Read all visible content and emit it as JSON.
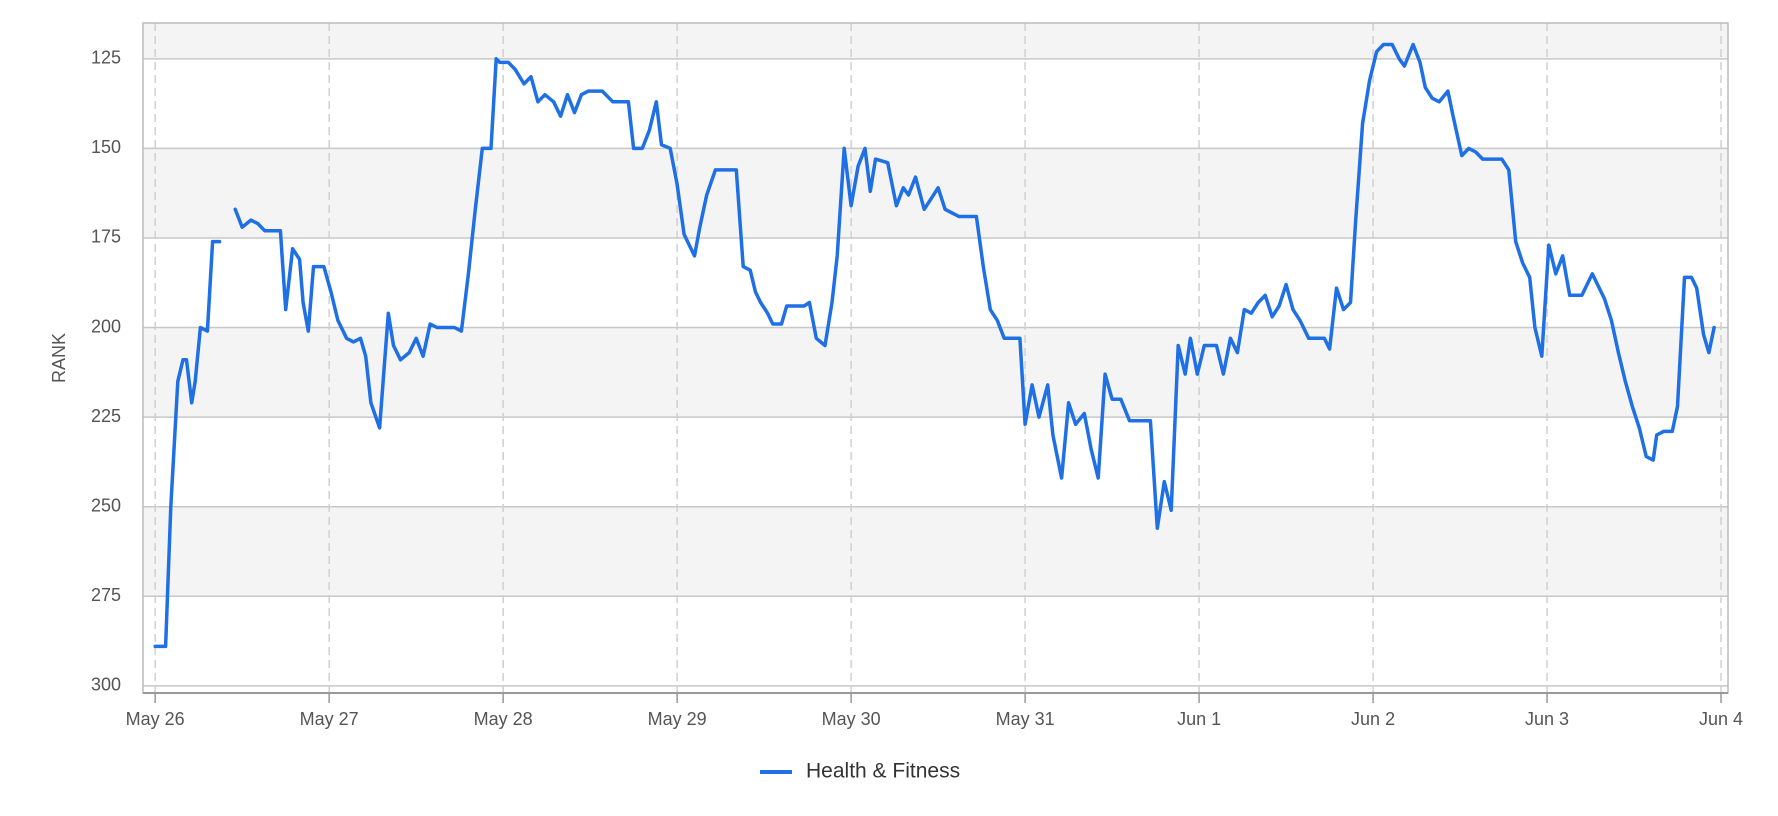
{
  "chart_data": {
    "type": "line",
    "y_label": "RANK",
    "y_reversed": true,
    "grid": true,
    "ylim": [
      115,
      302
    ],
    "yticks": [
      125,
      150,
      175,
      200,
      225,
      250,
      275,
      300
    ],
    "xlim": [
      -0.07,
      9.04
    ],
    "xticks": [
      {
        "value": 0,
        "label": "May 26"
      },
      {
        "value": 1,
        "label": "May 27"
      },
      {
        "value": 2,
        "label": "May 28"
      },
      {
        "value": 3,
        "label": "May 29"
      },
      {
        "value": 4,
        "label": "May 30"
      },
      {
        "value": 5,
        "label": "May 31"
      },
      {
        "value": 6,
        "label": "Jun 1"
      },
      {
        "value": 7,
        "label": "Jun 2"
      },
      {
        "value": 8,
        "label": "Jun 3"
      },
      {
        "value": 9,
        "label": "Jun 4"
      }
    ],
    "x": [
      0,
      0.06,
      0.09,
      0.13,
      0.16,
      0.18,
      0.21,
      0.23,
      0.26,
      0.3,
      0.33,
      0.37,
      0.41,
      0.46,
      0.5,
      0.55,
      0.59,
      0.63,
      0.72,
      0.75,
      0.79,
      0.83,
      0.85,
      0.88,
      0.91,
      0.97,
      1.01,
      1.05,
      1.1,
      1.14,
      1.18,
      1.21,
      1.24,
      1.29,
      1.34,
      1.37,
      1.41,
      1.46,
      1.5,
      1.54,
      1.58,
      1.62,
      1.72,
      1.76,
      1.8,
      1.84,
      1.88,
      1.93,
      1.96,
      1.98,
      2.03,
      2.07,
      2.12,
      2.16,
      2.2,
      2.24,
      2.29,
      2.33,
      2.37,
      2.41,
      2.45,
      2.49,
      2.57,
      2.63,
      2.72,
      2.75,
      2.8,
      2.84,
      2.88,
      2.91,
      2.96,
      3.0,
      3.04,
      3.1,
      3.13,
      3.17,
      3.22,
      3.34,
      3.38,
      3.42,
      3.45,
      3.48,
      3.52,
      3.55,
      3.6,
      3.63,
      3.73,
      3.76,
      3.8,
      3.85,
      3.89,
      3.92,
      3.96,
      4.0,
      4.04,
      4.08,
      4.11,
      4.14,
      4.21,
      4.26,
      4.3,
      4.33,
      4.37,
      4.42,
      4.46,
      4.5,
      4.54,
      4.58,
      4.62,
      4.72,
      4.76,
      4.8,
      4.84,
      4.88,
      4.97,
      5.0,
      5.04,
      5.08,
      5.13,
      5.16,
      5.21,
      5.25,
      5.29,
      5.34,
      5.38,
      5.42,
      5.46,
      5.5,
      5.55,
      5.6,
      5.72,
      5.76,
      5.8,
      5.84,
      5.88,
      5.92,
      5.95,
      5.99,
      6.03,
      6.1,
      6.14,
      6.18,
      6.22,
      6.26,
      6.3,
      6.34,
      6.38,
      6.42,
      6.46,
      6.5,
      6.54,
      6.58,
      6.63,
      6.72,
      6.75,
      6.79,
      6.83,
      6.87,
      6.9,
      6.94,
      6.98,
      7.02,
      7.06,
      7.11,
      7.15,
      7.18,
      7.23,
      7.27,
      7.3,
      7.34,
      7.38,
      7.43,
      7.46,
      7.51,
      7.55,
      7.59,
      7.63,
      7.74,
      7.78,
      7.82,
      7.86,
      7.9,
      7.93,
      7.97,
      8.01,
      8.05,
      8.09,
      8.13,
      8.2,
      8.24,
      8.26,
      8.3,
      8.33,
      8.37,
      8.41,
      8.45,
      8.49,
      8.53,
      8.57,
      8.61,
      8.63,
      8.67,
      8.72,
      8.75,
      8.79,
      8.83,
      8.86,
      8.9,
      8.93,
      8.96
    ],
    "series": [
      {
        "name": "Health & Fitness",
        "color": "#1f6fe5",
        "values": [
          289,
          289,
          250,
          215,
          209,
          209,
          221,
          215,
          200,
          201,
          176,
          176,
          null,
          167,
          172,
          170,
          171,
          173,
          173,
          195,
          178,
          181,
          193,
          201,
          183,
          183,
          190,
          198,
          203,
          204,
          203,
          208,
          221,
          228,
          196,
          205,
          209,
          207,
          203,
          208,
          199,
          200,
          200,
          201,
          185,
          167,
          150,
          150,
          125,
          126,
          126,
          128,
          132,
          130,
          137,
          135,
          137,
          141,
          135,
          140,
          135,
          134,
          134,
          137,
          137,
          150,
          150,
          145,
          137,
          149,
          150,
          160,
          174,
          180,
          172,
          163,
          156,
          156,
          183,
          184,
          190,
          193,
          196,
          199,
          199,
          194,
          194,
          193,
          203,
          205,
          193,
          180,
          150,
          166,
          155,
          150,
          162,
          153,
          154,
          166,
          161,
          163,
          158,
          167,
          164,
          161,
          167,
          168,
          169,
          169,
          183,
          195,
          198,
          203,
          203,
          227,
          216,
          225,
          216,
          230,
          242,
          221,
          227,
          224,
          234,
          242,
          213,
          220,
          220,
          226,
          226,
          256,
          243,
          251,
          205,
          213,
          203,
          213,
          205,
          205,
          213,
          203,
          207,
          195,
          196,
          193,
          191,
          197,
          194,
          188,
          195,
          198,
          203,
          203,
          206,
          189,
          195,
          193,
          170,
          143,
          131,
          123,
          121,
          121,
          125,
          127,
          121,
          126,
          133,
          136,
          137,
          134,
          141,
          152,
          150,
          151,
          153,
          153,
          156,
          176,
          182,
          186,
          200,
          208,
          177,
          185,
          180,
          191,
          191,
          187,
          185,
          189,
          192,
          198,
          207,
          215,
          222,
          228,
          236,
          237,
          230,
          229,
          229,
          222,
          186,
          186,
          189,
          202,
          207,
          200
        ]
      }
    ]
  }
}
